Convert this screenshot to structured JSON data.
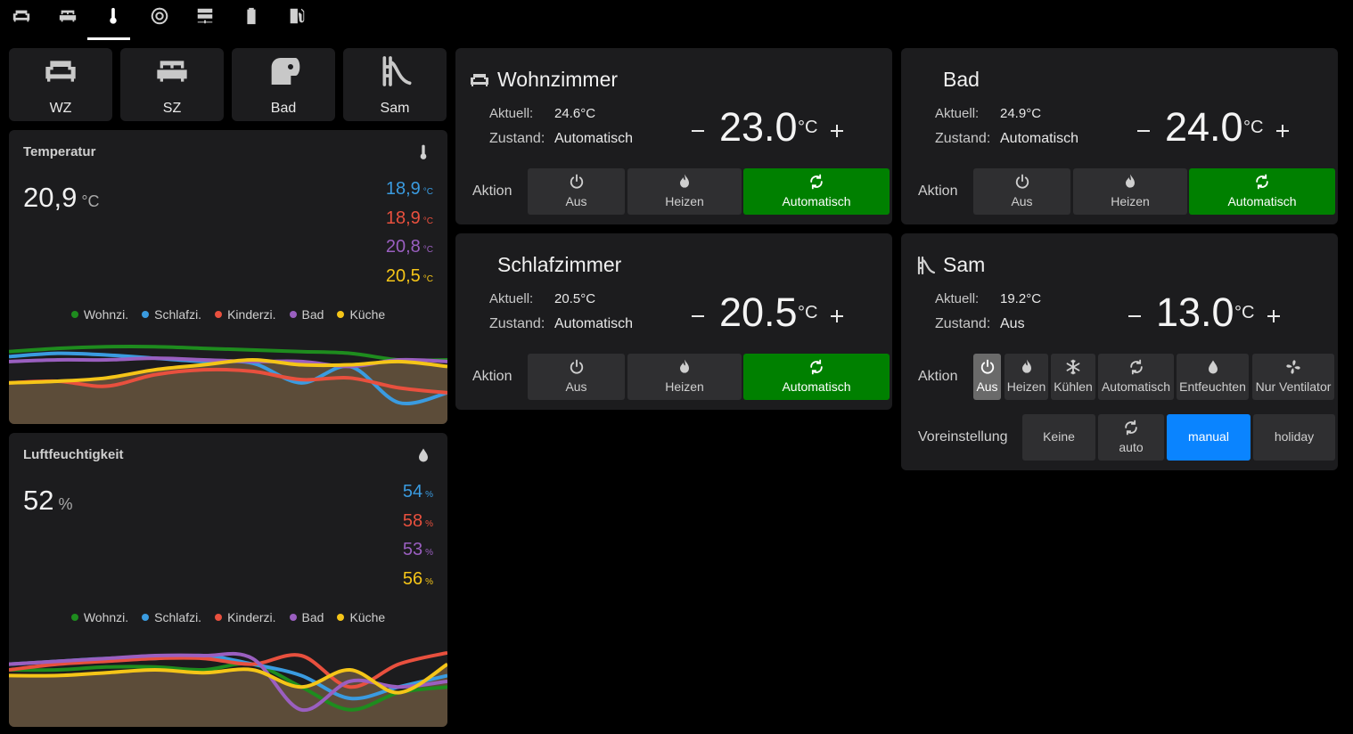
{
  "rooms": [
    "WZ",
    "SZ",
    "Bad",
    "Sam"
  ],
  "temperature": {
    "title": "Temperatur",
    "unit": "°C",
    "ylim": [
      17,
      22.2
    ],
    "series": [
      {
        "name": "Wohnzi.",
        "color": "#1e8c1e",
        "current": "20,9",
        "values": [
          21.4,
          21.6,
          21.7,
          21.7,
          21.6,
          21.5,
          21.4,
          21.3,
          20.9,
          20.9
        ]
      },
      {
        "name": "Schlafzi.",
        "color": "#3a9be0",
        "current": "18,9",
        "values": [
          21.1,
          21.3,
          21.2,
          21.0,
          20.8,
          20.7,
          19.5,
          20.5,
          18.3,
          18.9
        ]
      },
      {
        "name": "Kinderzi.",
        "color": "#e8503e",
        "current": "18,9",
        "values": [
          19.5,
          19.6,
          19.3,
          20.0,
          20.3,
          20.2,
          19.7,
          19.8,
          19.2,
          18.9
        ]
      },
      {
        "name": "Bad",
        "color": "#9a5fc0",
        "current": "20,8",
        "values": [
          20.8,
          20.9,
          20.9,
          21.0,
          20.9,
          20.8,
          20.8,
          20.5,
          20.9,
          20.8
        ]
      },
      {
        "name": "Küche",
        "color": "#f5c518",
        "current": "20,5",
        "values": [
          19.5,
          19.6,
          19.8,
          20.3,
          20.6,
          20.9,
          20.6,
          20.6,
          20.8,
          20.5
        ]
      }
    ]
  },
  "humidity": {
    "title": "Luftfeuchtigkeit",
    "unit": "%",
    "ylim": [
      45,
      60
    ],
    "series": [
      {
        "name": "Wohnzi.",
        "color": "#1e8c1e",
        "current": "52",
        "values": [
          55,
          55,
          55.5,
          55.5,
          55,
          56,
          52,
          48,
          51,
          52
        ]
      },
      {
        "name": "Schlafzi.",
        "color": "#3a9be0",
        "current": "54",
        "values": [
          56,
          56.5,
          57,
          57,
          57.5,
          56,
          54,
          50,
          52,
          54
        ]
      },
      {
        "name": "Kinderzi.",
        "color": "#e8503e",
        "current": "58",
        "values": [
          55,
          56,
          56.5,
          57,
          57,
          56,
          57.5,
          52,
          56,
          58
        ]
      },
      {
        "name": "Bad",
        "color": "#9a5fc0",
        "current": "53",
        "values": [
          56,
          56.5,
          57,
          57.5,
          57.5,
          57,
          48,
          53,
          52,
          53
        ]
      },
      {
        "name": "Küche",
        "color": "#f5c518",
        "current": "56",
        "values": [
          54,
          54,
          54.5,
          55,
          54.5,
          55,
          52,
          55,
          51,
          56
        ]
      }
    ]
  },
  "labels": {
    "current": "Aktuell:",
    "state": "Zustand:",
    "action": "Aktion",
    "preset": "Voreinstellung"
  },
  "thermostats": [
    {
      "name": "Wohnzimmer",
      "current": "24.6°C",
      "state": "Automatisch",
      "target": "23.0",
      "unit": "°C",
      "modes": [
        "Aus",
        "Heizen",
        "Automatisch"
      ]
    },
    {
      "name": "Bad",
      "current": "24.9°C",
      "state": "Automatisch",
      "target": "24.0",
      "unit": "°C",
      "modes": [
        "Aus",
        "Heizen",
        "Automatisch"
      ]
    },
    {
      "name": "Schlafzimmer",
      "current": "20.5°C",
      "state": "Automatisch",
      "target": "20.5",
      "unit": "°C",
      "modes": [
        "Aus",
        "Heizen",
        "Automatisch"
      ]
    },
    {
      "name": "Sam",
      "current": "19.2°C",
      "state": "Aus",
      "target": "13.0",
      "unit": "°C",
      "modes": [
        "Aus",
        "Heizen",
        "Kühlen",
        "Automatisch",
        "Entfeuchten",
        "Nur Ventilator"
      ],
      "presets": [
        "Keine",
        "auto",
        "manual",
        "holiday"
      ]
    }
  ]
}
